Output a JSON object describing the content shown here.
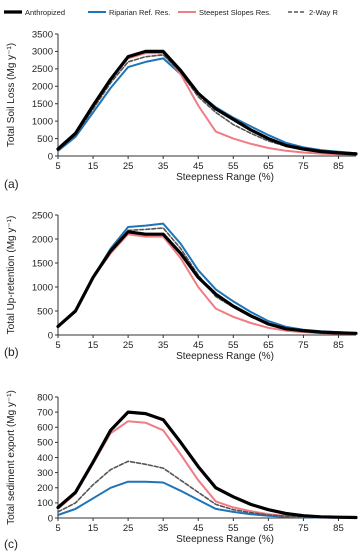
{
  "legend": [
    {
      "name": "Anthropized",
      "color": "#000000",
      "width": 3.2,
      "dash": ""
    },
    {
      "name": "Riparian Ref. Res.",
      "color": "#1f74b8",
      "width": 2,
      "dash": ""
    },
    {
      "name": "Steepest Slopes Res.",
      "color": "#f07c84",
      "width": 2,
      "dash": ""
    },
    {
      "name": "2-Way R",
      "color": "#555555",
      "width": 1.6,
      "dash": "4,2"
    }
  ],
  "chart_data": [
    {
      "type": "line",
      "panel_label": "(a)",
      "xlabel": "Steepness Range (%)",
      "ylabel": "Total Soil Loss (Mg y⁻¹)",
      "xlim": [
        5,
        90
      ],
      "ylim": [
        0,
        3500
      ],
      "xticks": [
        5,
        15,
        25,
        35,
        45,
        55,
        65,
        75,
        85
      ],
      "yticks": [
        0,
        500,
        1000,
        1500,
        2000,
        2500,
        3000,
        3500
      ],
      "x": [
        5,
        10,
        15,
        20,
        25,
        30,
        35,
        40,
        45,
        50,
        55,
        60,
        65,
        70,
        75,
        80,
        85,
        90
      ],
      "series": [
        {
          "name": "Anthropized",
          "values": [
            200,
            650,
            1450,
            2200,
            2850,
            3000,
            3000,
            2450,
            1800,
            1350,
            1050,
            750,
            500,
            300,
            200,
            130,
            90,
            60
          ]
        },
        {
          "name": "Riparian Ref. Res.",
          "values": [
            150,
            550,
            1250,
            1950,
            2550,
            2700,
            2800,
            2350,
            1800,
            1400,
            1100,
            850,
            600,
            380,
            250,
            170,
            120,
            80
          ]
        },
        {
          "name": "Steepest Slopes Res.",
          "values": [
            200,
            650,
            1450,
            2200,
            2800,
            2950,
            2950,
            2350,
            1450,
            700,
            500,
            350,
            230,
            150,
            100,
            70,
            50,
            40
          ]
        },
        {
          "name": "2-Way R",
          "values": [
            170,
            600,
            1350,
            2100,
            2700,
            2850,
            2900,
            2400,
            1700,
            1250,
            900,
            650,
            430,
            280,
            180,
            120,
            80,
            50
          ]
        }
      ]
    },
    {
      "type": "line",
      "panel_label": "(b)",
      "xlabel": "Steepness Range (%)",
      "ylabel": "Total Up-retention (Mg y⁻¹)",
      "xlim": [
        5,
        90
      ],
      "ylim": [
        0,
        2500
      ],
      "xticks": [
        5,
        15,
        25,
        35,
        45,
        55,
        65,
        75,
        85
      ],
      "yticks": [
        0,
        500,
        1000,
        1500,
        2000,
        2500
      ],
      "x": [
        5,
        10,
        15,
        20,
        25,
        30,
        35,
        40,
        45,
        50,
        55,
        60,
        65,
        70,
        75,
        80,
        85,
        90
      ],
      "series": [
        {
          "name": "Anthropized",
          "values": [
            180,
            500,
            1200,
            1750,
            2150,
            2100,
            2100,
            1700,
            1200,
            850,
            600,
            400,
            230,
            130,
            90,
            60,
            45,
            35
          ]
        },
        {
          "name": "Riparian Ref. Res.",
          "values": [
            170,
            500,
            1200,
            1800,
            2250,
            2280,
            2320,
            1900,
            1350,
            950,
            700,
            480,
            290,
            170,
            110,
            80,
            60,
            40
          ]
        },
        {
          "name": "Steepest Slopes Res.",
          "values": [
            180,
            500,
            1200,
            1700,
            2100,
            2050,
            2050,
            1600,
            1000,
            550,
            380,
            250,
            150,
            90,
            60,
            40,
            30,
            25
          ]
        },
        {
          "name": "2-Way R",
          "values": [
            170,
            500,
            1200,
            1750,
            2180,
            2200,
            2230,
            1800,
            1250,
            800,
            580,
            380,
            220,
            130,
            85,
            60,
            45,
            35
          ]
        }
      ]
    },
    {
      "type": "line",
      "panel_label": "(c)",
      "xlabel": "Steepness Range (%)",
      "ylabel": "Total sediment export (Mg y⁻¹)",
      "xlim": [
        5,
        90
      ],
      "ylim": [
        0,
        800
      ],
      "xticks": [
        5,
        15,
        25,
        35,
        45,
        55,
        65,
        75,
        85
      ],
      "yticks": [
        0,
        100,
        200,
        300,
        400,
        500,
        600,
        700,
        800
      ],
      "x": [
        5,
        10,
        15,
        20,
        25,
        30,
        35,
        40,
        45,
        50,
        55,
        60,
        65,
        70,
        75,
        80,
        85,
        90
      ],
      "series": [
        {
          "name": "Anthropized",
          "values": [
            70,
            170,
            370,
            580,
            700,
            690,
            650,
            500,
            340,
            200,
            140,
            90,
            55,
            30,
            15,
            8,
            5,
            3
          ]
        },
        {
          "name": "Riparian Ref. Res.",
          "values": [
            20,
            60,
            130,
            200,
            240,
            240,
            235,
            180,
            120,
            60,
            40,
            25,
            15,
            8,
            5,
            3,
            2,
            2
          ]
        },
        {
          "name": "Steepest Slopes Res.",
          "values": [
            60,
            160,
            360,
            560,
            640,
            630,
            580,
            420,
            250,
            110,
            70,
            45,
            25,
            14,
            8,
            5,
            3,
            2
          ]
        },
        {
          "name": "2-Way R",
          "values": [
            40,
            100,
            220,
            320,
            375,
            355,
            330,
            250,
            170,
            90,
            55,
            35,
            20,
            12,
            7,
            4,
            3,
            2
          ]
        }
      ]
    }
  ]
}
